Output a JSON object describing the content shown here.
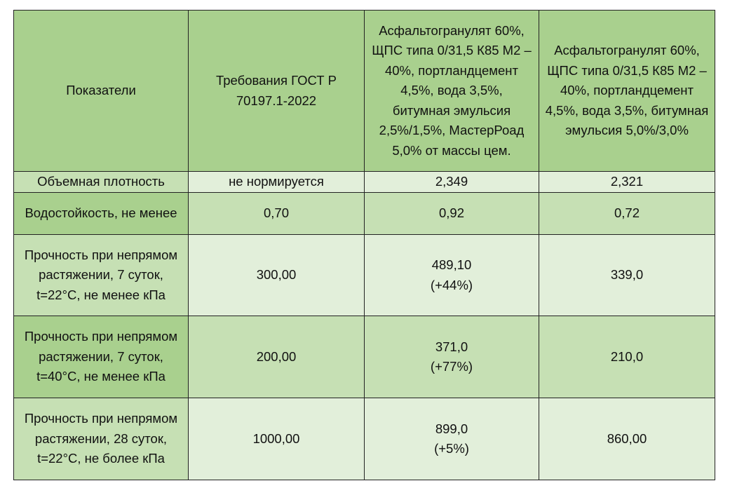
{
  "table": {
    "header": [
      "Показатели",
      "Требования ГОСТ Р 70197.1-2022",
      "Асфальтогранулят 60%, ЩПС типа 0/31,5 К85 М2 – 40%, портландцемент 4,5%, вода 3,5%, битумная эмульсия 2,5%/1,5%, МастерРоад 5,0% от массы цем.",
      "Асфальтогранулят 60%, ЩПС типа 0/31,5 К85 М2 – 40%, портландцемент 4,5%, вода 3,5%, битумная эмульсия 5,0%/3,0%"
    ],
    "rows": [
      [
        "Объемная плотность",
        "не нормируется",
        "2,349",
        "2,321"
      ],
      [
        "Водостойкость, не менее",
        "0,70",
        "0,92",
        "0,72"
      ],
      [
        "Прочность при непрямом растяжении, 7 суток, t=22°C, не менее кПа",
        "300,00",
        "489,10\n(+44%)",
        "339,0"
      ],
      [
        "Прочность при непрямом растяжении, 7 суток, t=40°C, не менее кПа",
        "200,00",
        "371,0\n(+77%)",
        "210,0"
      ],
      [
        "Прочность при непрямом растяжении, 28 суток, t=22°C, не более кПа",
        "1000,00",
        "899,0\n(+5%)",
        "860,00"
      ]
    ]
  }
}
